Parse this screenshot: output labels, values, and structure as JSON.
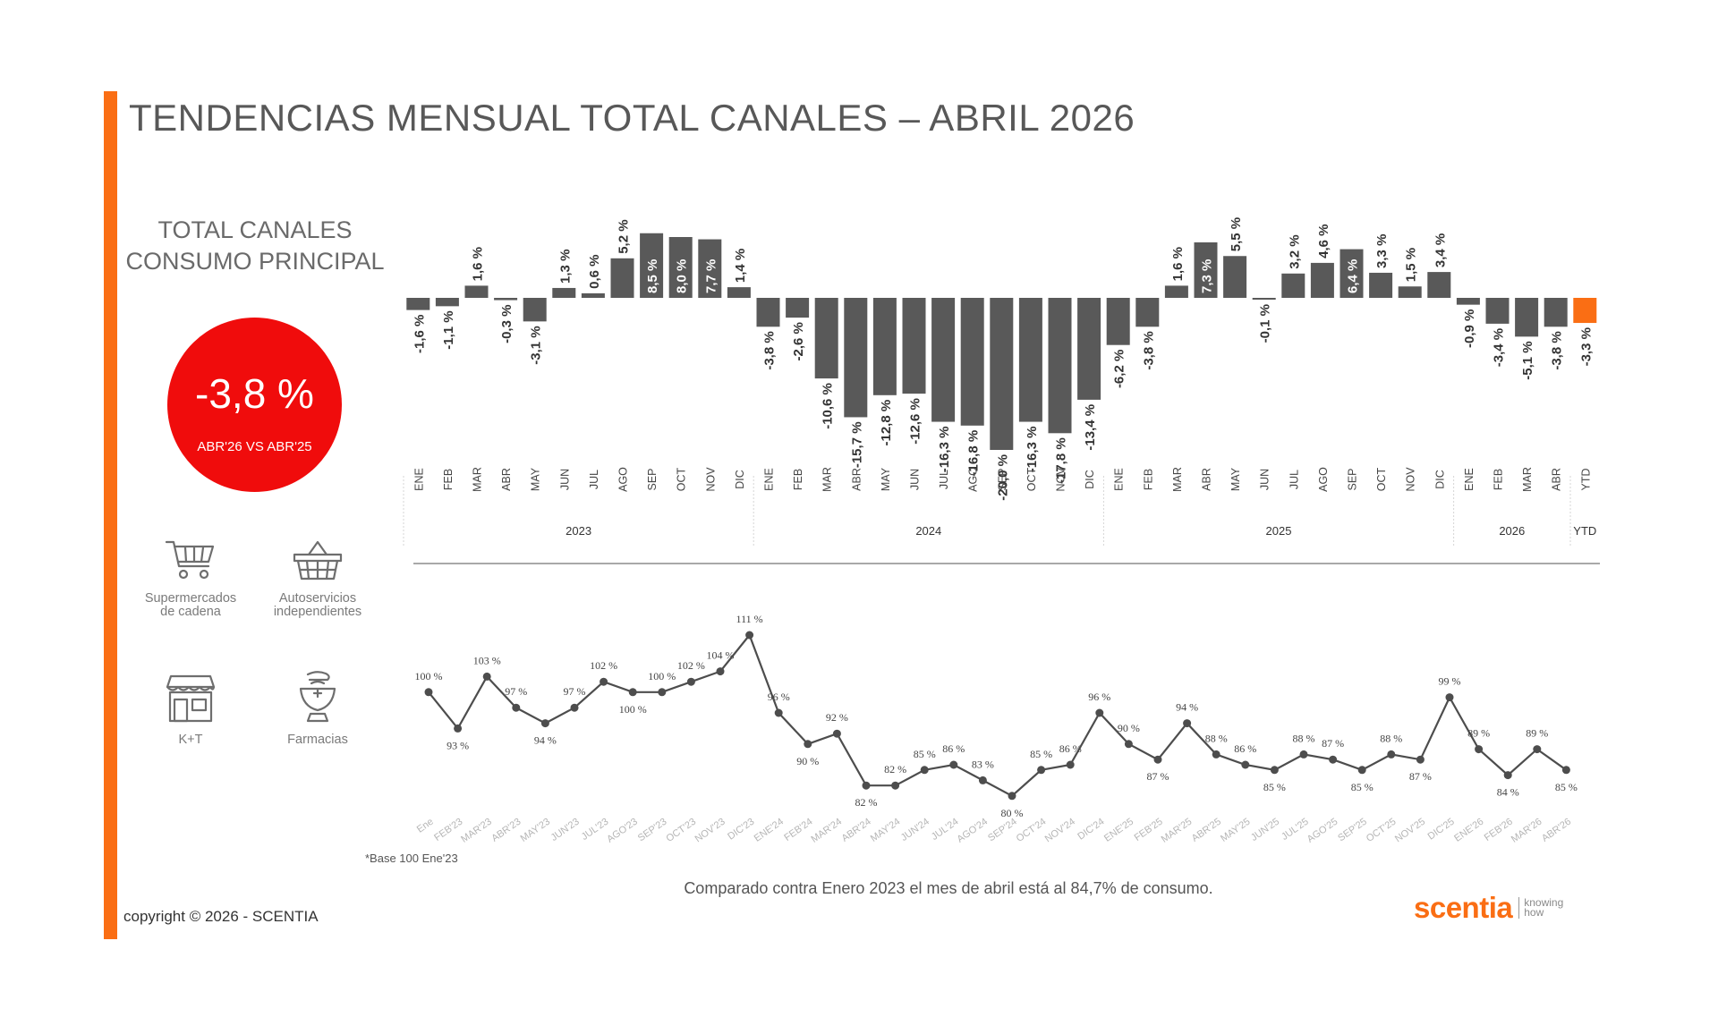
{
  "title": "TENDENCIAS MENSUAL TOTAL CANALES – ABRIL 2026",
  "subtitle": [
    "TOTAL CANALES",
    "CONSUMO PRINCIPAL"
  ],
  "kpi": {
    "value": "-3,8 %",
    "caption": "ABR'26 VS ABR'25"
  },
  "channels": [
    {
      "icon": "shopping-cart-icon",
      "label": "Supermercados\nde cadena"
    },
    {
      "icon": "shopping-basket-icon",
      "label": "Autoservicios\nindependientes"
    },
    {
      "icon": "storefront-icon",
      "label": "K+T"
    },
    {
      "icon": "pharmacy-icon",
      "label": "Farmacias"
    }
  ],
  "colors": {
    "accent": "#fa6e14",
    "bar": "#595959",
    "ytd_bar": "#fa6e14",
    "kpi": "#f00c0c",
    "line": "#4d4d4d"
  },
  "chart_data": [
    {
      "type": "bar",
      "categories": [
        "ENE",
        "FEB",
        "MAR",
        "ABR",
        "MAY",
        "JUN",
        "JUL",
        "AGO",
        "SEP",
        "OCT",
        "NOV",
        "DIC",
        "ENE",
        "FEB",
        "MAR",
        "ABR",
        "MAY",
        "JUN",
        "JUL",
        "AGO",
        "SEP",
        "OCT",
        "NOV",
        "DIC",
        "ENE",
        "FEB",
        "MAR",
        "ABR",
        "MAY",
        "JUN",
        "JUL",
        "AGO",
        "SEP",
        "OCT",
        "NOV",
        "DIC",
        "ENE",
        "FEB",
        "MAR",
        "ABR",
        "YTD"
      ],
      "groups": [
        {
          "label": "2023",
          "start": 0,
          "count": 12
        },
        {
          "label": "2024",
          "start": 12,
          "count": 12
        },
        {
          "label": "2025",
          "start": 24,
          "count": 12
        },
        {
          "label": "2026",
          "start": 36,
          "count": 4
        },
        {
          "label": "YTD",
          "start": 40,
          "count": 1
        }
      ],
      "values": [
        -1.6,
        -1.1,
        1.6,
        -0.3,
        -3.1,
        1.3,
        0.6,
        5.2,
        8.5,
        8.0,
        7.7,
        1.4,
        -3.8,
        -2.6,
        -10.6,
        -15.7,
        -12.8,
        -12.6,
        -16.3,
        -16.8,
        -20.0,
        -16.3,
        -17.8,
        -13.4,
        -6.2,
        -3.8,
        1.6,
        7.3,
        5.5,
        -0.1,
        3.2,
        4.6,
        6.4,
        3.3,
        1.5,
        3.4,
        -0.9,
        -3.4,
        -5.1,
        -3.8,
        -3.3
      ],
      "labels": [
        "-1,6 %",
        "-1,1 %",
        "1,6 %",
        "-0,3 %",
        "-3,1 %",
        "1,3 %",
        "0,6 %",
        "5,2 %",
        "8,5 %",
        "8,0 %",
        "7,7 %",
        "1,4 %",
        "-3,8 %",
        "-2,6 %",
        "-10,6 %",
        "-15,7 %",
        "-12,8 %",
        "-12,6 %",
        "-16,3 %",
        "-16,8 %",
        "-20,0 %",
        "-16,3 %",
        "-17,8 %",
        "-13,4 %",
        "-6,2 %",
        "-3,8 %",
        "1,6 %",
        "7,3 %",
        "5,5 %",
        "-0,1 %",
        "3,2 %",
        "4,6 %",
        "6,4 %",
        "3,3 %",
        "1,5 %",
        "3,4 %",
        "-0,9 %",
        "-3,4 %",
        "-5,1 %",
        "-3,8 %",
        "-3,3 %"
      ],
      "highlight_last": true
    },
    {
      "type": "line",
      "x": [
        "Ene",
        "FEB'23",
        "MAR'23",
        "ABR'23",
        "MAY'23",
        "JUN'23",
        "JUL'23",
        "AGO'23",
        "SEP'23",
        "OCT'23",
        "NOV'23",
        "DIC'23",
        "ENE'24",
        "FEB'24",
        "MAR'24",
        "ABR'24",
        "MAY'24",
        "JUN'24",
        "JUL'24",
        "AGO'24",
        "SEP'24",
        "OCT'24",
        "NOV'24",
        "DIC'24",
        "ENE'25",
        "FEB'25",
        "MAR'25",
        "ABR'25",
        "MAY'25",
        "JUN'25",
        "JUL'25",
        "AGO'25",
        "SEP'25",
        "OCT'25",
        "NOV'25",
        "DIC'25",
        "ENE'26",
        "FEB'26",
        "MAR'26",
        "ABR'26"
      ],
      "values": [
        100,
        93,
        103,
        97,
        94,
        97,
        102,
        100,
        100,
        102,
        104,
        111,
        96,
        90,
        92,
        82,
        82,
        85,
        86,
        83,
        80,
        85,
        86,
        96,
        90,
        87,
        94,
        88,
        86,
        85,
        88,
        87,
        85,
        88,
        87,
        99,
        89,
        84,
        89,
        85
      ],
      "labels": [
        "100 %",
        "93 %",
        "103 %",
        "97 %",
        "94 %",
        "97 %",
        "102 %",
        "100 %",
        "100 %",
        "102 %",
        "104 %",
        "111 %",
        "96 %",
        "90 %",
        "92 %",
        "82 %",
        "82 %",
        "85 %",
        "86 %",
        "83 %",
        "80 %",
        "85 %",
        "86 %",
        "96 %",
        "90 %",
        "87 %",
        "94 %",
        "88 %",
        "86 %",
        "85 %",
        "88 %",
        "87 %",
        "85 %",
        "88 %",
        "87 %",
        "99 %",
        "89 %",
        "84 %",
        "89 %",
        "85 %"
      ]
    }
  ],
  "footnote": "*Base 100 Ene'23",
  "caption": "Comparado contra Enero 2023 el mes de abril está al 84,7% de consumo.",
  "copyright": "copyright © 2026 - SCENTIA",
  "brand": {
    "name": "scentia",
    "tagline": [
      "knowing",
      "how"
    ]
  }
}
